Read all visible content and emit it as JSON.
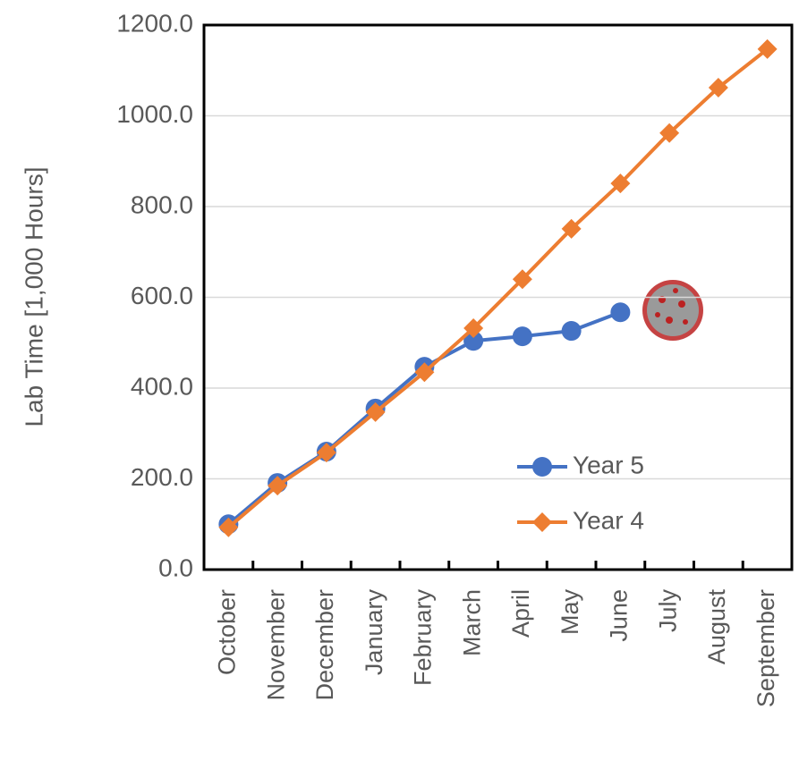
{
  "chart_data": {
    "type": "line",
    "ylabel": "Lab Time [1,000 Hours]",
    "categories": [
      "October",
      "November",
      "December",
      "January",
      "February",
      "March",
      "April",
      "May",
      "June",
      "July",
      "August",
      "September"
    ],
    "series": [
      {
        "name": "Year 5",
        "color": "#4472c4",
        "marker": "circle",
        "values": [
          100,
          191,
          260,
          355,
          447,
          504,
          514,
          526,
          567,
          null,
          null,
          null
        ]
      },
      {
        "name": "Year 4",
        "color": "#ed7d31",
        "marker": "diamond",
        "values": [
          93,
          185,
          258,
          347,
          435,
          532,
          640,
          751,
          851,
          962,
          1062,
          1147
        ]
      }
    ],
    "ylim": [
      0,
      1200
    ],
    "yticks": [
      {
        "value": 0,
        "label": "0.0"
      },
      {
        "value": 200,
        "label": "200.0"
      },
      {
        "value": 400,
        "label": "400.0"
      },
      {
        "value": 600,
        "label": "600.0"
      },
      {
        "value": 800,
        "label": "800.0"
      },
      {
        "value": 1000,
        "label": "1000.0"
      },
      {
        "value": 1200,
        "label": "1200.0"
      }
    ],
    "grid": true,
    "legend": "lower right"
  }
}
